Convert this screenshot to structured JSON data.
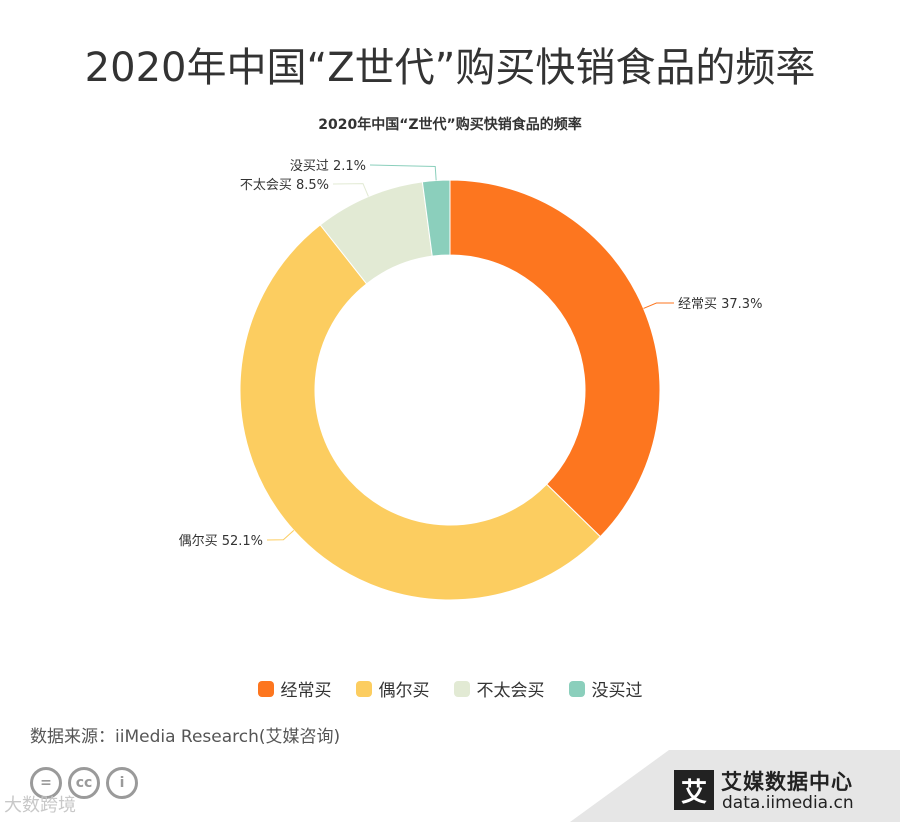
{
  "page": {
    "title": "2020年中国“Z世代”购买快销食品的频率",
    "source": "数据来源：iiMedia Research(艾媒咨询)",
    "watermark": "大数跨境",
    "brand_name": "艾媒数据中心",
    "brand_logo_char": "艾",
    "brand_url": "data.iimedia.cn",
    "cc_icons": [
      "equals-icon",
      "cc-icon",
      "person-icon"
    ]
  },
  "chart_data": {
    "type": "pie",
    "title": "2020年中国“Z世代”购买快销食品的频率",
    "categories": [
      "经常买",
      "偶尔买",
      "不太会买",
      "没买过"
    ],
    "values": [
      37.3,
      52.1,
      8.5,
      2.1
    ],
    "labels": [
      "经常买 37.3%",
      "偶尔买 52.1%",
      "不太会买 8.5%",
      "没买过 2.1%"
    ],
    "colors": [
      "#FD761F",
      "#FCCD60",
      "#E2EAD4",
      "#8BCFBC"
    ],
    "legend_position": "bottom",
    "donut": true
  }
}
